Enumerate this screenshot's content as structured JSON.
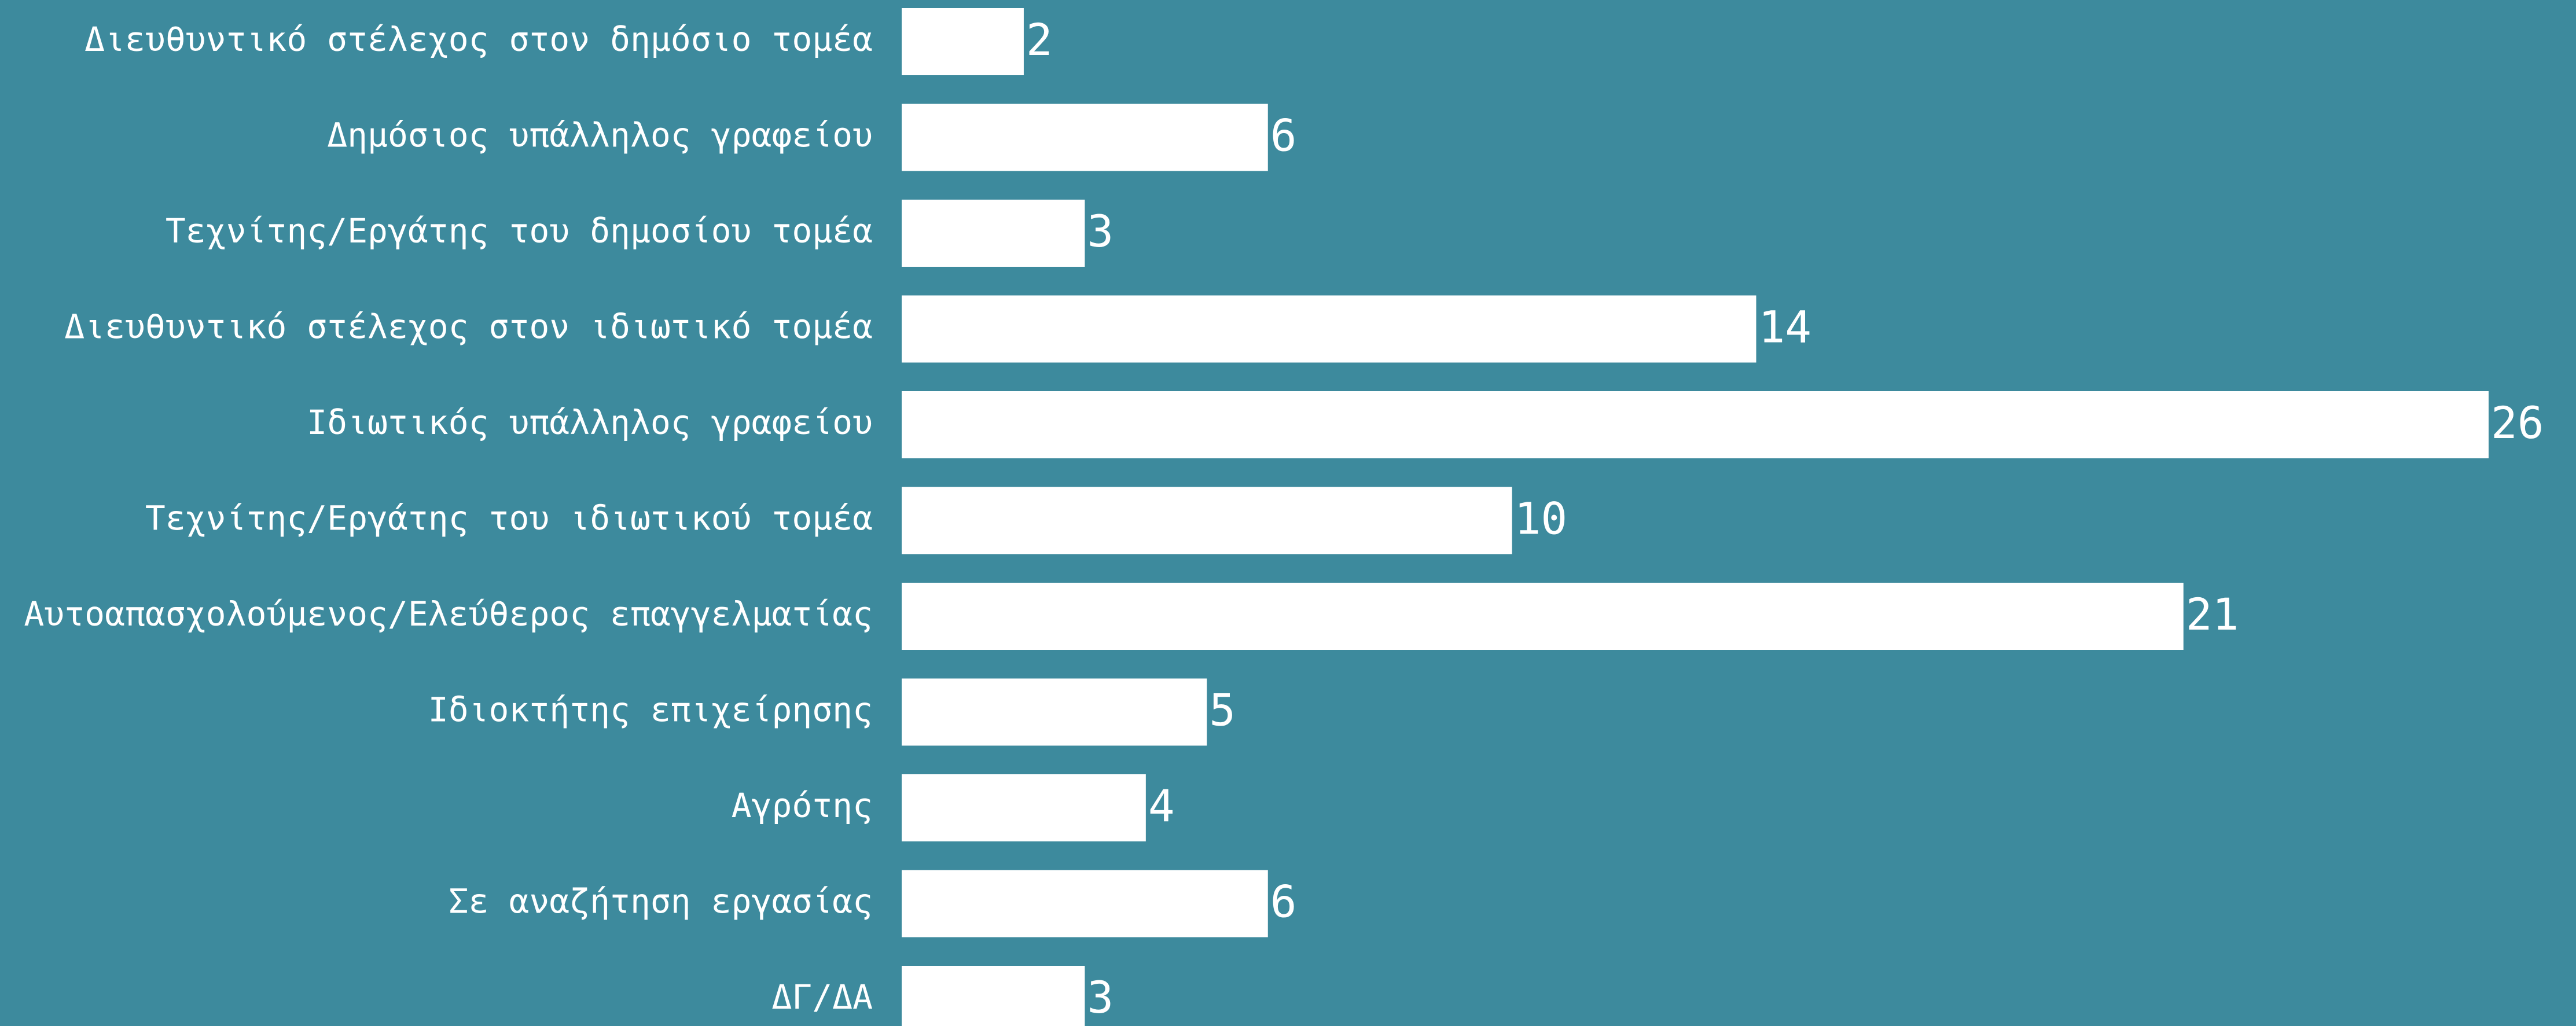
{
  "chart_data": {
    "type": "bar",
    "orientation": "horizontal",
    "categories": [
      "Διευθυντικό στέλεχος στον δημόσιο τομέα",
      "Δημόσιος υπάλληλος γραφείου",
      "Τεχνίτης/Εργάτης του δημοσίου τομέα",
      "Διευθυντικό στέλεχος στον ιδιωτικό τομέα",
      "Ιδιωτικός υπάλληλος γραφείου",
      "Τεχνίτης/Εργάτης του ιδιωτικού τομέα",
      "Αυτοαπασχολούμενος/Ελεύθερος επαγγελματίας",
      "Ιδιοκτήτης επιχείρησης",
      "Αγρότης",
      "Σε αναζήτηση εργασίας",
      "ΔΓ/ΔΑ"
    ],
    "values": [
      2,
      6,
      3,
      14,
      26,
      10,
      21,
      5,
      4,
      6,
      3
    ],
    "xlim": [
      0,
      26
    ],
    "grid": false,
    "legend": "none",
    "data_labels": true
  },
  "colors": {
    "background": "#3d8a9d",
    "bar": "#ffffff",
    "text": "#ffffff"
  }
}
